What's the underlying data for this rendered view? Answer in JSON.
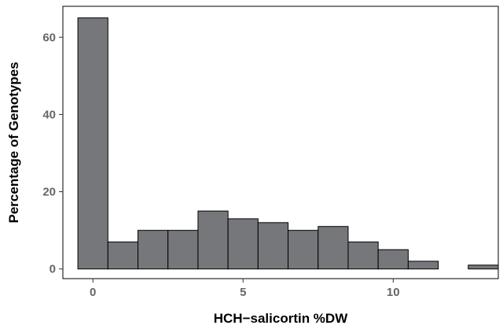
{
  "chart_data": {
    "type": "bar",
    "title": "",
    "xlabel": "HCH−salicortin %DW",
    "ylabel": "Percentage of Genotypes",
    "bin_width": 1,
    "x": [
      0,
      1,
      2,
      3,
      4,
      5,
      6,
      7,
      8,
      9,
      10,
      11,
      12,
      13
    ],
    "values": [
      65,
      7,
      10,
      10,
      15,
      13,
      12,
      10,
      11,
      7,
      5,
      2,
      0,
      1
    ],
    "xlim": [
      -1,
      13.5
    ],
    "ylim": [
      -2.5,
      68
    ],
    "x_ticks": [
      {
        "value": 0,
        "label": "0"
      },
      {
        "value": 5,
        "label": "5"
      },
      {
        "value": 10,
        "label": "10"
      }
    ],
    "y_ticks": [
      {
        "value": 0,
        "label": "0"
      },
      {
        "value": 20,
        "label": "20"
      },
      {
        "value": 40,
        "label": "40"
      },
      {
        "value": 60,
        "label": "60"
      }
    ],
    "grid": false,
    "legend": "none",
    "bar_color": "#76777b",
    "bar_edge_color": "#000000"
  }
}
